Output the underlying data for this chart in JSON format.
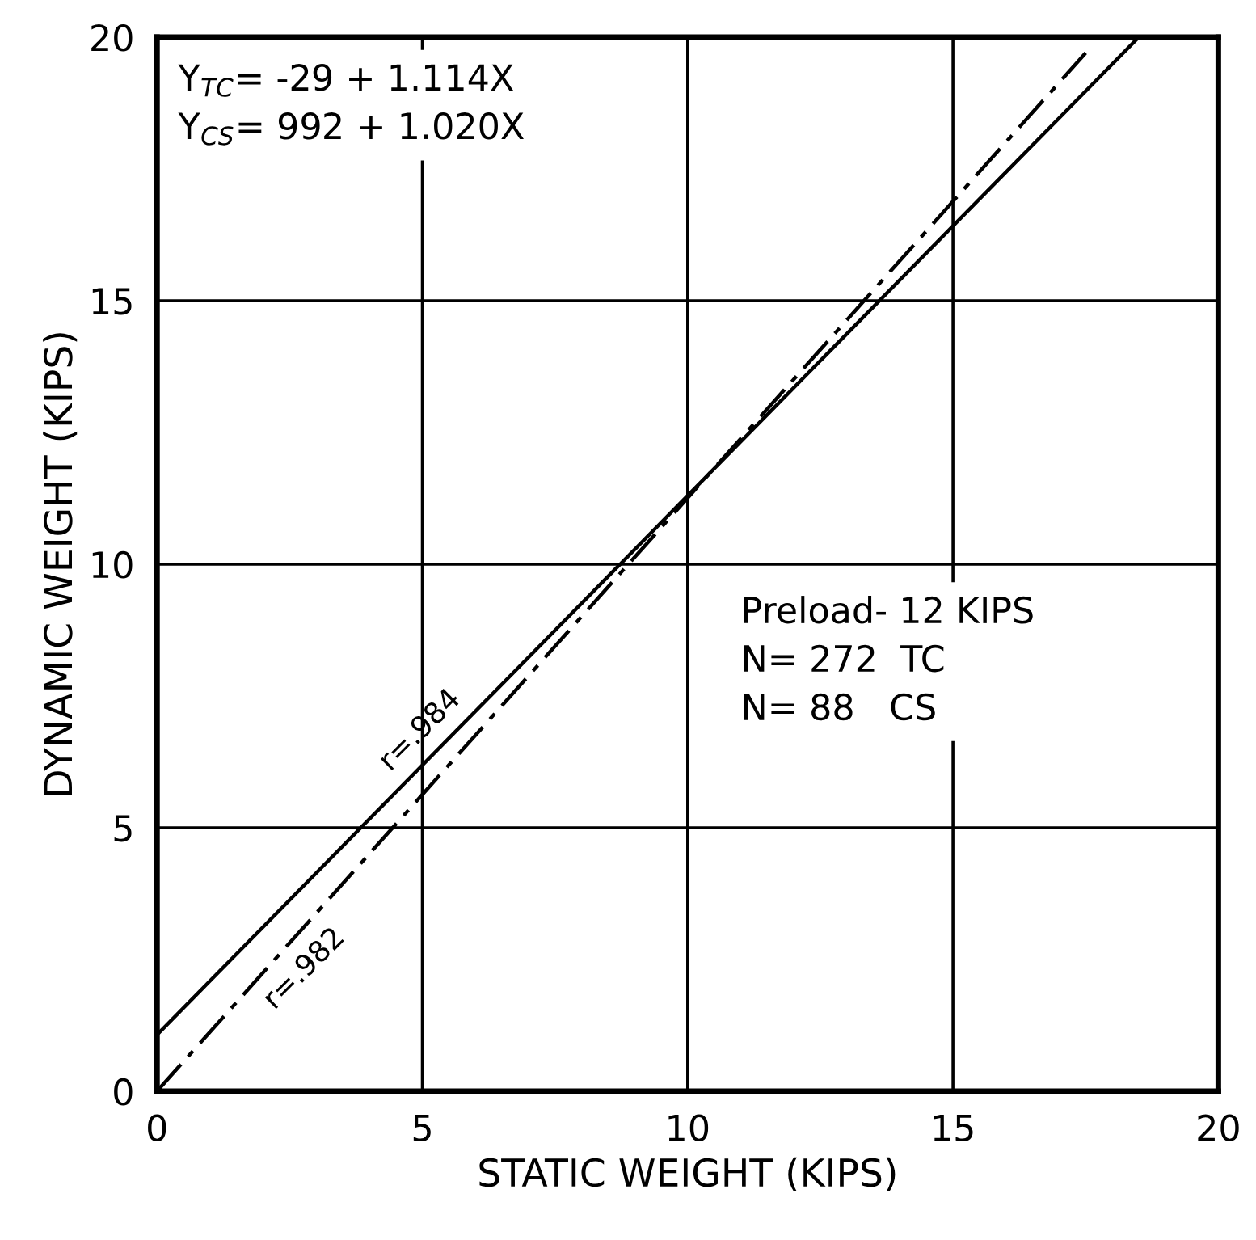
{
  "chart_data": {
    "type": "line",
    "xlabel": "STATIC WEIGHT (KIPS)",
    "ylabel": "DYNAMIC WEIGHT (KIPS)",
    "xlim": [
      0,
      20
    ],
    "ylim": [
      0,
      20
    ],
    "xticks": [
      0,
      5,
      10,
      15,
      20
    ],
    "yticks": [
      0,
      5,
      10,
      15,
      20
    ],
    "grid": true,
    "marker": "none",
    "series": [
      {
        "color": "#000000",
        "line_style": "solid",
        "x": [
          0,
          18.5
        ],
        "values": [
          1.07,
          20
        ]
      },
      {
        "color": "#000000",
        "line_style": "dashed",
        "x": [
          0,
          17.5
        ],
        "values": [
          0,
          19.7
        ]
      }
    ],
    "annotations": [
      "Y$_{TC}$= -29 + 1.114X\nY$_{CS}$= 992 + 1.020X",
      "Preload- 12 KIPS\nN= 272  TC\nN= 88   CS",
      {
        "text": "r=.984",
        "x": 5.3,
        "y": 6.5
      },
      {
        "text": "r=.982",
        "x": 2.4,
        "y": 2.7
      }
    ]
  }
}
